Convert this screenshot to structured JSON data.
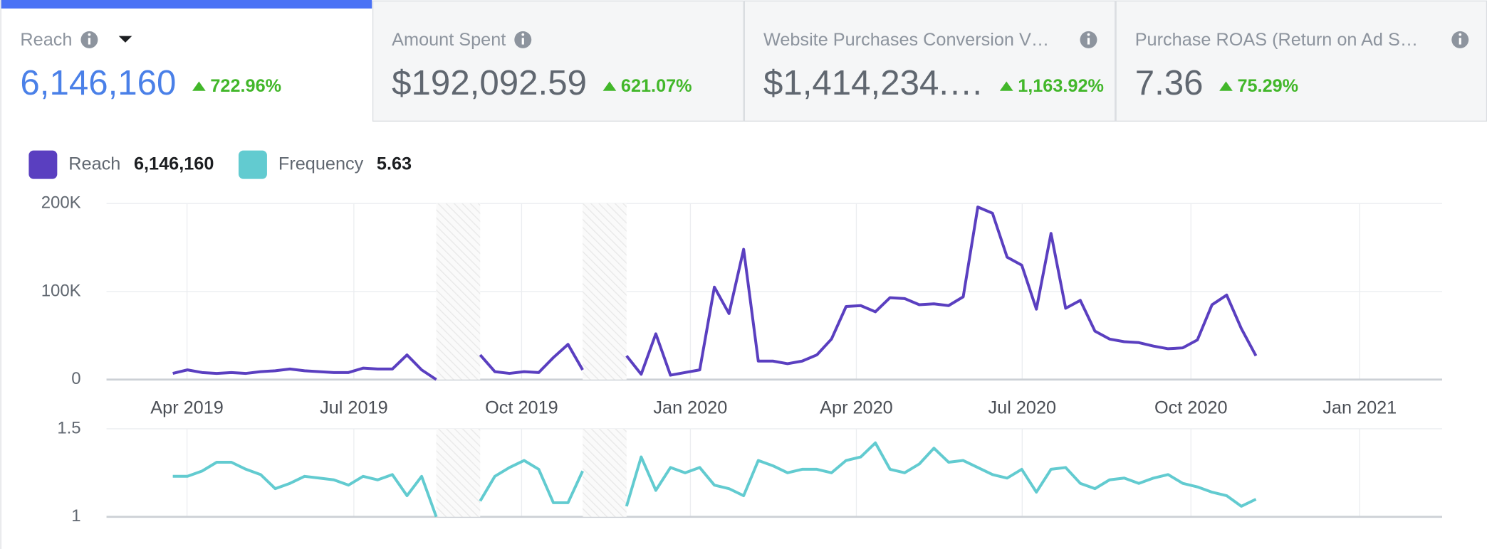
{
  "tabs": [
    {
      "label": "Reach",
      "value": "6,146,160",
      "change": "722.96%"
    },
    {
      "label": "Amount Spent",
      "value": "$192,092.59",
      "change": "621.07%"
    },
    {
      "label": "Website Purchases Conversion V…",
      "value": "$1,414,234.…",
      "change": "1,163.92%"
    },
    {
      "label": "Purchase ROAS (Return on Ad S…",
      "value": "7.36",
      "change": "75.29%"
    }
  ],
  "chart_data": [
    {
      "type": "line",
      "x": [
        0,
        1,
        2,
        3,
        4,
        5,
        6,
        7,
        8,
        9,
        10,
        11,
        12,
        13,
        14,
        15,
        16,
        17,
        18,
        19,
        20,
        21,
        22,
        23,
        24,
        25,
        26,
        27,
        28,
        29,
        30,
        31,
        32,
        33,
        34,
        35,
        36,
        37,
        38,
        39,
        40,
        41,
        42,
        43,
        44,
        45,
        46,
        47,
        48,
        49,
        50,
        51,
        52,
        53,
        54,
        55,
        56,
        57,
        58,
        59,
        60,
        61,
        62,
        63,
        64,
        65,
        66,
        67,
        68,
        69,
        70,
        71,
        72,
        73,
        74
      ],
      "series": [
        {
          "name": "Reach",
          "total": "6,146,160",
          "color": "#5a3fc0",
          "values": [
            7000,
            11000,
            8000,
            7000,
            8000,
            7000,
            9000,
            10000,
            12000,
            10000,
            9000,
            8000,
            8000,
            13000,
            12000,
            12000,
            28000,
            11000,
            0,
            null,
            null,
            28000,
            9000,
            7000,
            9000,
            8000,
            25000,
            40000,
            11000,
            null,
            null,
            27000,
            6000,
            52000,
            5000,
            8000,
            11000,
            105000,
            75000,
            148000,
            21000,
            21000,
            18000,
            21000,
            28000,
            46000,
            83000,
            84000,
            77000,
            93000,
            92000,
            85000,
            86000,
            84000,
            94000,
            196000,
            189000,
            139000,
            130000,
            80000,
            166000,
            81000,
            90000,
            55000,
            46000,
            43000,
            42000,
            38000,
            35000,
            36000,
            45000,
            85000,
            96000,
            58000,
            27000
          ]
        }
      ],
      "xlim": [
        -4.53,
        86.72
      ],
      "xticks": [
        {
          "value": 0.97,
          "label": "Apr 2019"
        },
        {
          "value": 12.37,
          "label": "Jul 2019"
        },
        {
          "value": 23.83,
          "label": "Oct 2019"
        },
        {
          "value": 35.36,
          "label": "Jan 2020"
        },
        {
          "value": 46.7,
          "label": "Apr 2020"
        },
        {
          "value": 58.03,
          "label": "Jul 2020"
        },
        {
          "value": 69.56,
          "label": "Oct 2020"
        },
        {
          "value": 81.09,
          "label": "Jan 2021"
        }
      ],
      "ylim": [
        0,
        200000
      ],
      "yticks": [
        0,
        {
          "value": 100000,
          "label": "100K"
        },
        {
          "value": 200000,
          "label": "200K"
        }
      ],
      "grid": true
    },
    {
      "type": "line",
      "x": [
        0,
        1,
        2,
        3,
        4,
        5,
        6,
        7,
        8,
        9,
        10,
        11,
        12,
        13,
        14,
        15,
        16,
        17,
        18,
        19,
        20,
        21,
        22,
        23,
        24,
        25,
        26,
        27,
        28,
        29,
        30,
        31,
        32,
        33,
        34,
        35,
        36,
        37,
        38,
        39,
        40,
        41,
        42,
        43,
        44,
        45,
        46,
        47,
        48,
        49,
        50,
        51,
        52,
        53,
        54,
        55,
        56,
        57,
        58,
        59,
        60,
        61,
        62,
        63,
        64,
        65,
        66,
        67,
        68,
        69,
        70,
        71,
        72,
        73,
        74
      ],
      "series": [
        {
          "name": "Frequency",
          "total": "5.63",
          "color": "#62cbd0",
          "values": [
            1.23,
            1.23,
            1.26,
            1.31,
            1.31,
            1.27,
            1.24,
            1.16,
            1.19,
            1.23,
            1.22,
            1.21,
            1.18,
            1.23,
            1.21,
            1.24,
            1.12,
            1.23,
            1,
            null,
            null,
            1.09,
            1.23,
            1.28,
            1.32,
            1.27,
            1.08,
            1.08,
            1.26,
            null,
            null,
            1.06,
            1.34,
            1.15,
            1.28,
            1.25,
            1.28,
            1.18,
            1.16,
            1.12,
            1.32,
            1.29,
            1.25,
            1.27,
            1.27,
            1.25,
            1.32,
            1.34,
            1.42,
            1.27,
            1.25,
            1.3,
            1.39,
            1.31,
            1.32,
            1.28,
            1.24,
            1.22,
            1.27,
            1.14,
            1.27,
            1.28,
            1.19,
            1.16,
            1.21,
            1.22,
            1.19,
            1.22,
            1.24,
            1.19,
            1.17,
            1.14,
            1.12,
            1.06,
            1.1
          ]
        }
      ],
      "xlim": [
        -4.53,
        86.72
      ],
      "ylim": [
        1,
        1.5
      ],
      "yticks": [
        1,
        1.5
      ],
      "grid": true
    }
  ]
}
